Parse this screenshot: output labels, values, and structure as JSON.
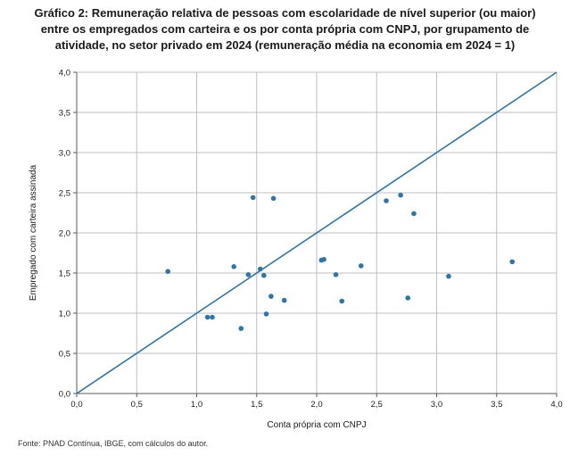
{
  "title_lines": [
    "Gráfico 2: Remuneração relativa de pessoas com escolaridade de nível superior (ou maior)",
    "entre os empregados com carteira e os por conta própria com CNPJ, por grupamento de",
    "atividade, no setor privado em 2024 (remuneração média na economia em 2024 = 1)"
  ],
  "source": "Fonte: PNAD Contínua, IBGE, com cálculos do autor.",
  "colors": {
    "series": "#2e75a8",
    "grid": "#bfbfbf"
  },
  "chart_data": {
    "type": "scatter",
    "xlabel": "Conta própria com CNPJ",
    "ylabel": "Empregado com carteira assinada",
    "xlim": [
      0,
      4
    ],
    "ylim": [
      0,
      4
    ],
    "x_ticks": [
      "0,0",
      "0,5",
      "1,0",
      "1,5",
      "2,0",
      "2,5",
      "3,0",
      "3,5",
      "4,0"
    ],
    "y_ticks": [
      "0,0",
      "0,5",
      "1,0",
      "1,5",
      "2,0",
      "2,5",
      "3,0",
      "3,5",
      "4,0"
    ],
    "grid": true,
    "reference_line": {
      "from": [
        0,
        0
      ],
      "to": [
        4,
        4
      ]
    },
    "points": [
      {
        "x": 0.76,
        "y": 1.52
      },
      {
        "x": 1.09,
        "y": 0.95
      },
      {
        "x": 1.13,
        "y": 0.95
      },
      {
        "x": 1.31,
        "y": 1.58
      },
      {
        "x": 1.37,
        "y": 0.81
      },
      {
        "x": 1.43,
        "y": 1.48
      },
      {
        "x": 1.47,
        "y": 2.44
      },
      {
        "x": 1.53,
        "y": 1.55
      },
      {
        "x": 1.56,
        "y": 1.47
      },
      {
        "x": 1.58,
        "y": 0.99
      },
      {
        "x": 1.62,
        "y": 1.21
      },
      {
        "x": 1.64,
        "y": 2.43
      },
      {
        "x": 1.73,
        "y": 1.16
      },
      {
        "x": 2.04,
        "y": 1.66
      },
      {
        "x": 2.06,
        "y": 1.67
      },
      {
        "x": 2.16,
        "y": 1.48
      },
      {
        "x": 2.21,
        "y": 1.15
      },
      {
        "x": 2.37,
        "y": 1.59
      },
      {
        "x": 2.58,
        "y": 2.4
      },
      {
        "x": 2.7,
        "y": 2.47
      },
      {
        "x": 2.76,
        "y": 1.19
      },
      {
        "x": 2.81,
        "y": 2.24
      },
      {
        "x": 3.1,
        "y": 1.46
      },
      {
        "x": 3.63,
        "y": 1.64
      }
    ]
  }
}
